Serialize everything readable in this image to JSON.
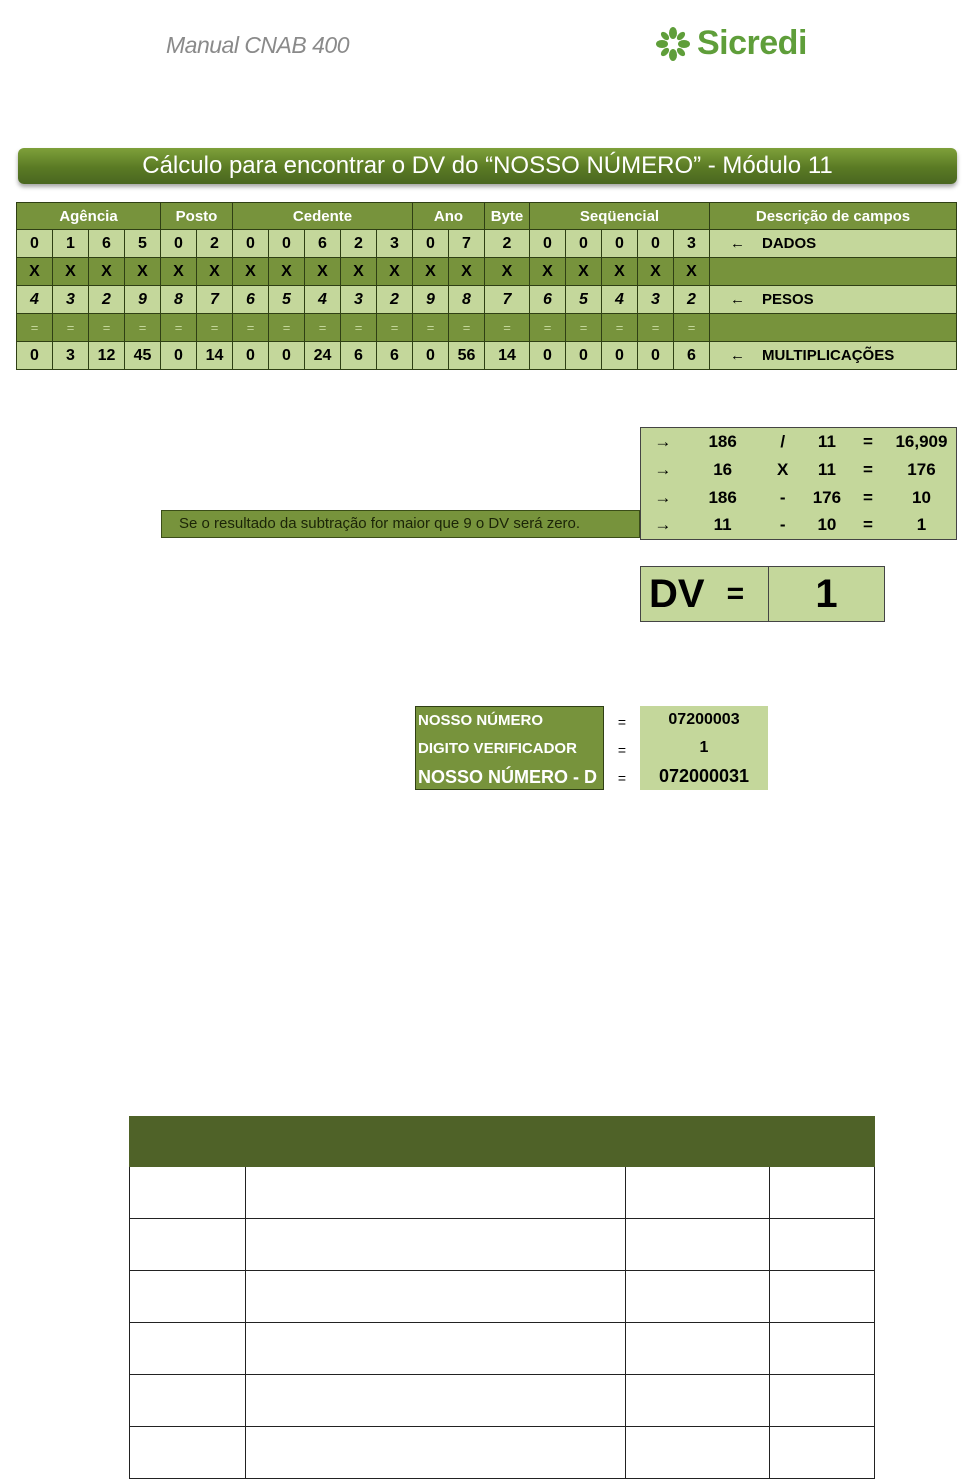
{
  "header": {
    "manual_title": "Manual CNAB 400",
    "logo_text": "Sicredi",
    "logo_color": "#5f9e3a"
  },
  "title": "Cálculo para encontrar o DV do “NOSSO NÚMERO” - Módulo 11",
  "colors": {
    "light_green": "#c4d79b",
    "dark_green": "#77933c",
    "header_dark": "#4f6228"
  },
  "main_table": {
    "groups": [
      {
        "label": "Agência",
        "span": 4
      },
      {
        "label": "Posto",
        "span": 2
      },
      {
        "label": "Cedente",
        "span": 5
      },
      {
        "label": "Ano",
        "span": 2
      },
      {
        "label": "Byte",
        "span": 1
      },
      {
        "label": "Seqüencial",
        "span": 5
      }
    ],
    "desc_header": "Descrição de campos",
    "rows": [
      {
        "type": "dados",
        "cells": [
          "0",
          "1",
          "6",
          "5",
          "0",
          "2",
          "0",
          "0",
          "6",
          "2",
          "3",
          "0",
          "7",
          "2",
          "0",
          "0",
          "0",
          "0",
          "3"
        ],
        "arrow": "←",
        "desc": "DADOS"
      },
      {
        "type": "x",
        "cells": [
          "X",
          "X",
          "X",
          "X",
          "X",
          "X",
          "X",
          "X",
          "X",
          "X",
          "X",
          "X",
          "X",
          "X",
          "X",
          "X",
          "X",
          "X",
          "X"
        ],
        "arrow": "",
        "desc": ""
      },
      {
        "type": "pesos",
        "cells": [
          "4",
          "3",
          "2",
          "9",
          "8",
          "7",
          "6",
          "5",
          "4",
          "3",
          "2",
          "9",
          "8",
          "7",
          "6",
          "5",
          "4",
          "3",
          "2"
        ],
        "arrow": "←",
        "desc": "PESOS"
      },
      {
        "type": "eq",
        "cells": [
          "=",
          "=",
          "=",
          "=",
          "=",
          "=",
          "=",
          "=",
          "=",
          "=",
          "=",
          "=",
          "=",
          "=",
          "=",
          "=",
          "=",
          "=",
          "="
        ],
        "arrow": "",
        "desc": ""
      },
      {
        "type": "mult",
        "cells": [
          "0",
          "3",
          "12",
          "45",
          "0",
          "14",
          "0",
          "0",
          "24",
          "6",
          "6",
          "0",
          "56",
          "14",
          "0",
          "0",
          "0",
          "0",
          "6"
        ],
        "arrow": "←",
        "desc": "MULTIPLICAÇÕES"
      }
    ]
  },
  "calc": [
    [
      "→",
      "186",
      "/",
      "11",
      "=",
      "16,909"
    ],
    [
      "→",
      "16",
      "X",
      "11",
      "=",
      "176"
    ],
    [
      "→",
      "186",
      "-",
      "176",
      "=",
      "10"
    ],
    [
      "→",
      "11",
      "-",
      "10",
      "=",
      "1"
    ]
  ],
  "note": "Se o resultado da subtração for maior que 9 o DV será zero.",
  "dv": {
    "label": "DV",
    "eq": "=",
    "value": "1"
  },
  "nosso": [
    {
      "label": "NOSSO NÚMERO",
      "eq": "=",
      "value": "07200003"
    },
    {
      "label": "DIGITO VERIFICADOR",
      "eq": "=",
      "value": "1"
    },
    {
      "label": "NOSSO NÚMERO - D",
      "eq": "=",
      "value": "072000031"
    }
  ]
}
